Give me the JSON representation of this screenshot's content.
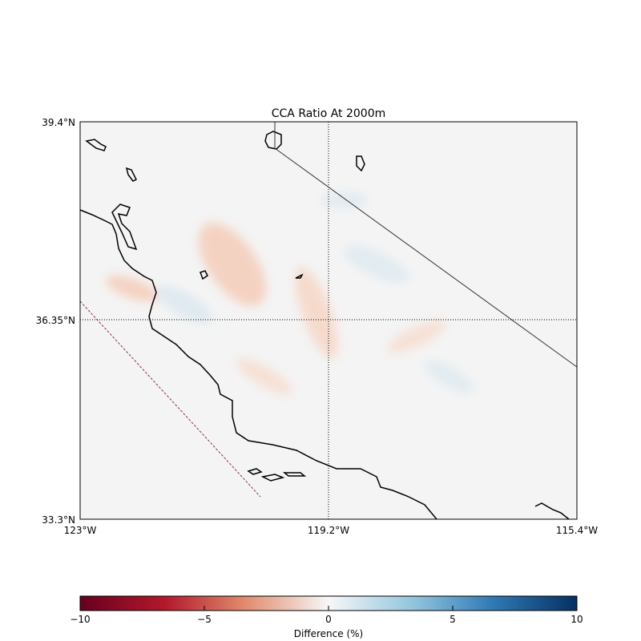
{
  "title": "CCA Ratio At 2000m",
  "lat_labels": [
    "39.4°N",
    "36.35°N",
    "33.3°N"
  ],
  "lon_labels": [
    "123°W",
    "119.2°W",
    "115.4°W"
  ],
  "colorbar": {
    "label": "Difference (%)",
    "ticks": [
      "−10",
      "−5",
      "0",
      "5",
      "10"
    ],
    "range": [
      -10,
      10
    ],
    "colormap": "RdBu",
    "colors": [
      "#67001f",
      "#b2182b",
      "#f4a582",
      "#f7f7f7",
      "#92c5de",
      "#2166ac",
      "#053061"
    ]
  },
  "map": {
    "background": "#f4f4f4",
    "coastline_color": "#000000"
  }
}
